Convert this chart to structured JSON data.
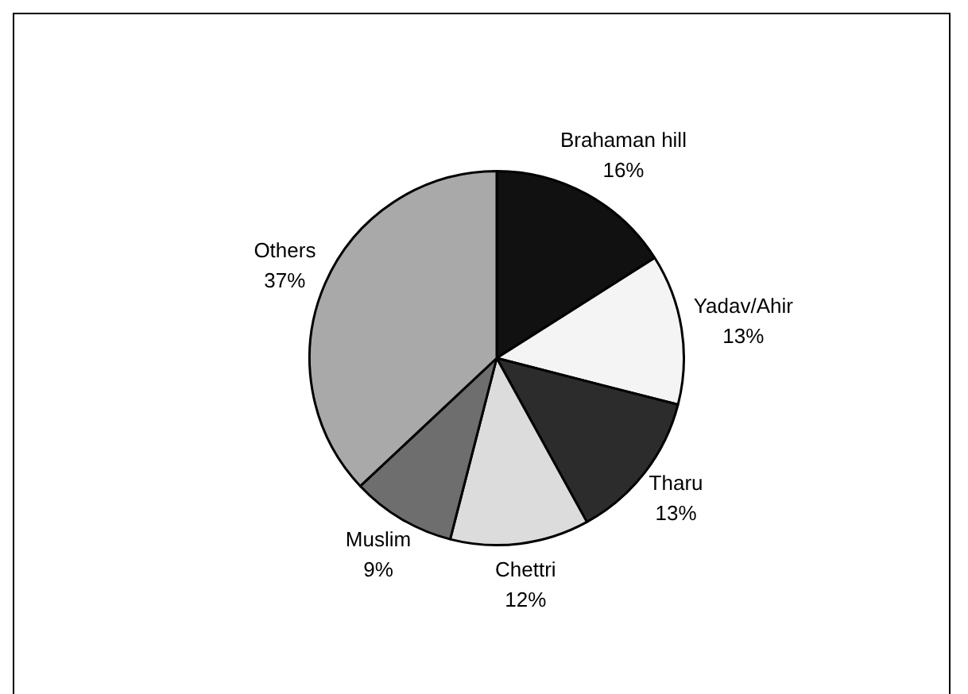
{
  "chart_data": {
    "type": "pie",
    "categories": [
      "Brahaman hill",
      "Yadav/Ahir",
      "Tharu",
      "Chettri",
      "Muslim",
      "Others"
    ],
    "values": [
      16,
      13,
      13,
      12,
      9,
      37
    ],
    "value_labels": [
      "16%",
      "13%",
      "13%",
      "12%",
      "9%",
      "37%"
    ],
    "colors": [
      "#111111",
      "#f4f4f4",
      "#2c2c2c",
      "#dcdcdc",
      "#6e6e6e",
      "#a9a9a9"
    ]
  }
}
